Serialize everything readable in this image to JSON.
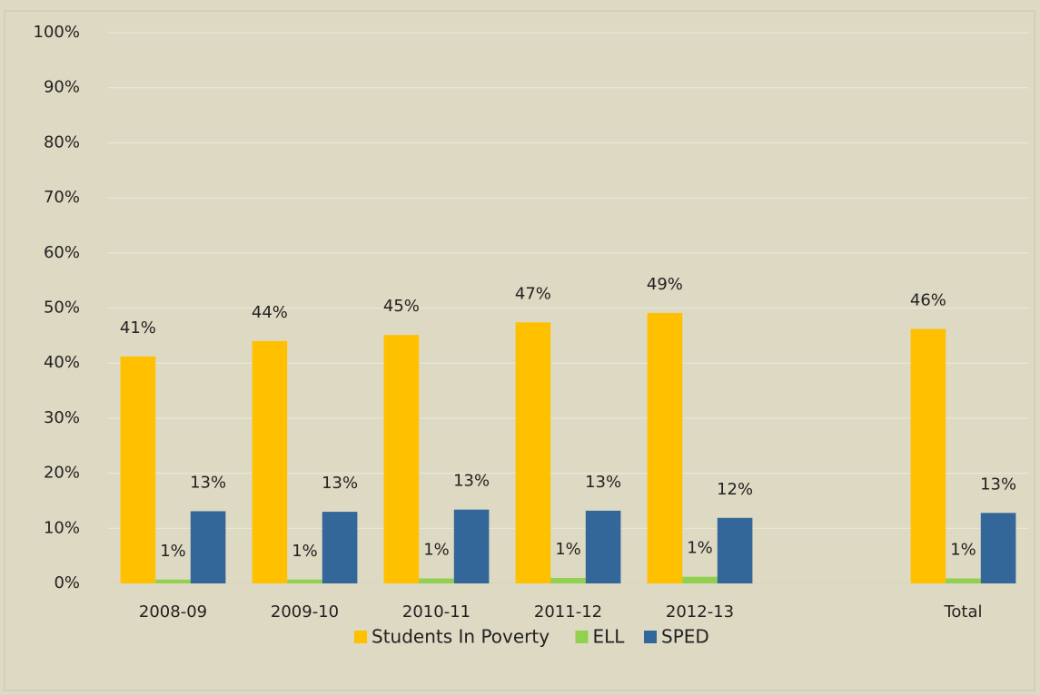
{
  "chart_data": {
    "type": "bar",
    "categories": [
      "2008-09",
      "2009-10",
      "2010-11",
      "2011-12",
      "2012-13",
      null,
      "Total"
    ],
    "series": [
      {
        "name": "Students In Poverty",
        "color": "#FFC000",
        "values": [
          41.2,
          44.0,
          45.1,
          47.4,
          49.1,
          null,
          46.2
        ],
        "value_labels": [
          "41%",
          "44%",
          "45%",
          "47%",
          "49%",
          null,
          "46%"
        ]
      },
      {
        "name": "ELL",
        "color": "#92D050",
        "values": [
          0.7,
          0.7,
          0.9,
          1.0,
          1.2,
          null,
          0.9
        ],
        "value_labels": [
          "1%",
          "1%",
          "1%",
          "1%",
          "1%",
          null,
          "1%"
        ]
      },
      {
        "name": "SPED",
        "color": "#336699",
        "values": [
          13.1,
          13.0,
          13.4,
          13.2,
          11.9,
          null,
          12.8
        ],
        "value_labels": [
          "13%",
          "13%",
          "13%",
          "13%",
          "12%",
          null,
          "13%"
        ]
      }
    ],
    "ylim": [
      0,
      100
    ],
    "yticks": [
      {
        "value": 0,
        "label": "0%"
      },
      {
        "value": 10,
        "label": "10%"
      },
      {
        "value": 20,
        "label": "20%"
      },
      {
        "value": 30,
        "label": "30%"
      },
      {
        "value": 40,
        "label": "40%"
      },
      {
        "value": 50,
        "label": "50%"
      },
      {
        "value": 60,
        "label": "60%"
      },
      {
        "value": 70,
        "label": "70%"
      },
      {
        "value": 80,
        "label": "80%"
      },
      {
        "value": 90,
        "label": "90%"
      },
      {
        "value": 100,
        "label": "100%"
      }
    ],
    "grid": true,
    "legend": "bottom"
  }
}
